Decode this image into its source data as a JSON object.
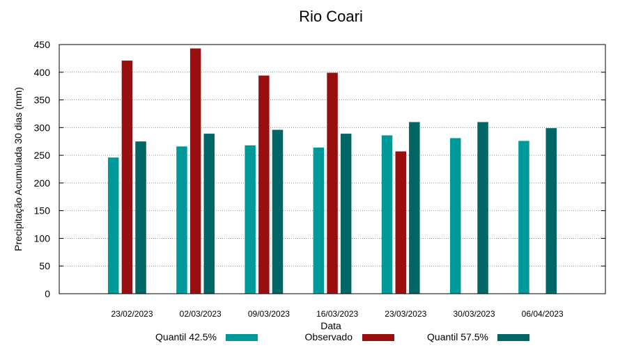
{
  "chart_data": {
    "type": "bar",
    "title": "Rio Coari",
    "xlabel": "Data",
    "ylabel": "Precipitação Acumulada 30 dias (mm)",
    "ylim": [
      0,
      450
    ],
    "yticks": [
      0,
      50,
      100,
      150,
      200,
      250,
      300,
      350,
      400,
      450
    ],
    "grid": true,
    "legend_position": "bottom",
    "categories": [
      "23/02/2023",
      "02/03/2023",
      "09/03/2023",
      "16/03/2023",
      "23/03/2023",
      "30/03/2023",
      "06/04/2023"
    ],
    "series": [
      {
        "name": "Quantil 42.5%",
        "color": "#009999",
        "values": [
          246,
          266,
          268,
          264,
          286,
          281,
          276
        ]
      },
      {
        "name": "Observado",
        "color": "#990f0f",
        "values": [
          421,
          443,
          394,
          399,
          257,
          null,
          null
        ]
      },
      {
        "name": "Quantil 57.5%",
        "color": "#006666",
        "values": [
          275,
          289,
          296,
          289,
          310,
          310,
          299
        ]
      }
    ]
  }
}
